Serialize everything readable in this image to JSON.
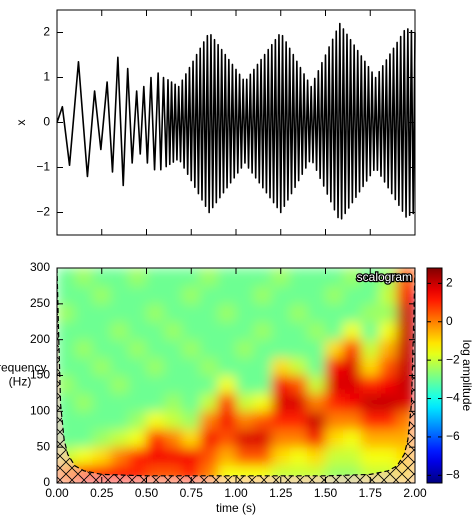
{
  "chart_data": [
    {
      "type": "line",
      "ylabel": "x",
      "color": "#000000",
      "x": [
        0,
        0.03,
        0.07,
        0.12,
        0.17,
        0.21,
        0.245,
        0.28,
        0.31,
        0.34,
        0.37,
        0.395,
        0.42,
        0.445,
        0.465,
        0.485,
        0.505,
        0.525,
        0.545,
        0.565,
        0.58,
        0.595,
        0.61,
        0.62,
        0.63,
        0.64,
        0.65,
        0.66,
        0.67,
        0.68,
        0.69,
        0.7,
        0.71,
        0.72,
        0.73,
        0.74,
        0.75,
        0.76,
        0.77,
        0.78,
        0.79,
        0.8,
        0.81,
        0.82,
        0.83,
        0.84,
        0.85,
        0.86,
        0.87,
        0.88,
        0.89,
        0.9,
        0.91,
        0.92,
        0.93,
        0.94,
        0.95,
        0.96,
        0.97,
        0.98,
        0.99,
        1.0,
        1.01,
        1.02,
        1.03,
        1.04,
        1.05,
        1.06,
        1.07,
        1.08,
        1.09,
        1.1,
        1.11,
        1.12,
        1.13,
        1.14,
        1.15,
        1.16,
        1.17,
        1.18,
        1.19,
        1.2,
        1.21,
        1.22,
        1.23,
        1.24,
        1.25,
        1.26,
        1.27,
        1.28,
        1.29,
        1.3,
        1.31,
        1.32,
        1.33,
        1.34,
        1.35,
        1.36,
        1.37,
        1.38,
        1.39,
        1.4,
        1.41,
        1.42,
        1.43,
        1.44,
        1.45,
        1.46,
        1.47,
        1.48,
        1.49,
        1.5,
        1.51,
        1.52,
        1.53,
        1.54,
        1.55,
        1.56,
        1.57,
        1.58,
        1.59,
        1.6,
        1.61,
        1.62,
        1.63,
        1.64,
        1.65,
        1.66,
        1.67,
        1.68,
        1.69,
        1.7,
        1.71,
        1.72,
        1.73,
        1.74,
        1.75,
        1.76,
        1.77,
        1.78,
        1.79,
        1.8,
        1.81,
        1.82,
        1.83,
        1.84,
        1.85,
        1.86,
        1.87,
        1.88,
        1.89,
        1.9,
        1.91,
        1.92,
        1.93,
        1.94,
        1.95,
        1.96,
        1.97,
        1.98,
        1.99,
        2.0
      ],
      "values": [
        0,
        0.35,
        -0.95,
        1.35,
        -1.2,
        0.7,
        -0.6,
        0.9,
        -1.1,
        1.45,
        -1.4,
        1.2,
        -0.9,
        0.7,
        -0.7,
        0.8,
        -0.9,
        1.0,
        -1.05,
        1.1,
        -1.05,
        1.0,
        -0.98,
        0.95,
        -0.93,
        0.9,
        -0.88,
        0.85,
        -0.83,
        0.8,
        -0.87,
        0.94,
        -1.01,
        1.08,
        -1.15,
        1.22,
        -1.29,
        1.36,
        -1.44,
        1.51,
        -1.58,
        1.65,
        -1.72,
        1.79,
        -1.86,
        1.93,
        -2.0,
        1.95,
        -1.89,
        1.84,
        -1.78,
        1.73,
        -1.67,
        1.62,
        -1.56,
        1.51,
        -1.45,
        1.4,
        -1.34,
        1.29,
        -1.23,
        1.18,
        -1.12,
        1.07,
        -1.01,
        0.96,
        -0.9,
        0.96,
        -1.01,
        1.07,
        -1.12,
        1.18,
        -1.23,
        1.29,
        -1.34,
        1.4,
        -1.45,
        1.51,
        -1.56,
        1.62,
        -1.67,
        1.73,
        -1.78,
        1.84,
        -1.89,
        1.95,
        -2.0,
        1.93,
        -1.86,
        1.79,
        -1.72,
        1.65,
        -1.58,
        1.51,
        -1.44,
        1.36,
        -1.29,
        1.22,
        -1.15,
        1.08,
        -1.01,
        0.94,
        -0.87,
        0.8,
        -0.89,
        0.98,
        -1.06,
        1.15,
        -1.24,
        1.33,
        -1.41,
        1.5,
        -1.59,
        1.68,
        -1.76,
        1.85,
        -1.94,
        2.03,
        -2.11,
        2.2,
        -2.14,
        2.08,
        -2.02,
        1.96,
        -1.9,
        1.84,
        -1.78,
        1.72,
        -1.66,
        1.6,
        -1.54,
        1.48,
        -1.42,
        1.36,
        -1.3,
        1.24,
        -1.18,
        1.12,
        -1.06,
        1.0,
        -1.06,
        1.13,
        -1.19,
        1.26,
        -1.32,
        1.39,
        -1.45,
        1.52,
        -1.58,
        1.65,
        -1.71,
        1.78,
        -1.84,
        1.91,
        -1.97,
        2.04,
        -2.1,
        2.08,
        -2.06,
        2.04,
        -2.02,
        2.0
      ],
      "xlim": [
        0,
        2
      ],
      "ylim": [
        -2.5,
        2.5
      ],
      "xticks": [
        0,
        0.25,
        0.5,
        0.75,
        1,
        1.25,
        1.5,
        1.75,
        2
      ],
      "xtick_labels": false,
      "yticks": [
        {
          "value": -2,
          "label": "−2"
        },
        {
          "value": -1,
          "label": "−1"
        },
        0,
        1,
        2
      ]
    },
    {
      "type": "heatmap",
      "annotation": "scalogram",
      "xlabel": "time (s)",
      "ylabel": [
        "frequency",
        "(Hz)"
      ],
      "colormap": "jet",
      "colorbar_label": "log amplitude",
      "zlim": [
        -8.4,
        2.8
      ],
      "zticks": [
        {
          "value": -8,
          "label": "−8"
        },
        {
          "value": -6,
          "label": "−6"
        },
        {
          "value": -4,
          "label": "−4"
        },
        {
          "value": -2,
          "label": "−2"
        },
        0,
        2
      ],
      "x_bins": [
        0,
        0.1,
        0.2,
        0.3,
        0.4,
        0.5,
        0.6,
        0.7,
        0.8,
        0.9,
        1.0,
        1.1,
        1.2,
        1.3,
        1.4,
        1.5,
        1.6,
        1.7,
        1.8,
        1.9,
        2.0
      ],
      "y_bins": [
        0,
        25,
        50,
        75,
        100,
        125,
        150,
        175,
        200,
        225,
        250,
        275,
        300
      ],
      "z": [
        [
          0,
          1,
          1.2,
          1.2,
          1,
          0.5,
          0.5,
          1,
          0,
          -1.5,
          -1.5,
          -1.5,
          -2,
          -2,
          -2,
          -2.5,
          -2.5,
          -2,
          -2,
          -1.5
        ],
        [
          -2,
          -1.5,
          -1,
          0,
          1,
          1.5,
          1.5,
          1.5,
          0.5,
          -0.5,
          0.5,
          0.5,
          -1,
          -1.5,
          -1,
          -2,
          -2,
          -1.5,
          -1.5,
          -1
        ],
        [
          -3,
          -3,
          -2.5,
          -2,
          -1.5,
          1,
          0,
          -1,
          1.5,
          0.5,
          1.8,
          1.8,
          0,
          0,
          1.5,
          -1,
          -1.5,
          -0.5,
          -0.5,
          -0.5
        ],
        [
          -3,
          -3,
          -3,
          -3,
          -2.5,
          -1.5,
          -2,
          -2.5,
          0,
          1.5,
          0,
          0.5,
          1,
          1,
          2,
          0,
          0,
          1,
          1,
          0
        ],
        [
          -3,
          -2.5,
          -3,
          -3,
          -3,
          -3,
          -2.5,
          -3,
          -2,
          1,
          -2,
          -1.5,
          1.8,
          1.8,
          0,
          1,
          1.5,
          2,
          2,
          1.8
        ],
        [
          -2.5,
          -3,
          -3,
          -2.5,
          -3,
          -3,
          -3,
          -3,
          -3,
          -1.5,
          -3,
          -3,
          1.5,
          0.5,
          -2,
          1.8,
          1.8,
          1,
          1.5,
          2
        ],
        [
          -3,
          -3,
          -2.5,
          -3,
          -3,
          -2.5,
          -3,
          -3,
          -2.5,
          -3,
          -3,
          -3,
          -1,
          -2,
          -3,
          1.5,
          1.8,
          -1,
          0.5,
          2
        ],
        [
          -3,
          -2.5,
          -3,
          -3,
          -2.5,
          -3,
          -3,
          -2.5,
          -3,
          -3,
          -2.5,
          -3,
          -3,
          -3,
          -3,
          -1,
          1,
          -2,
          -0.5,
          2
        ],
        [
          -3,
          -3,
          -3,
          -2.5,
          -3,
          -3,
          -2.5,
          -3,
          -3,
          -3,
          -3,
          -2.5,
          -3,
          -3,
          -2.5,
          -3,
          -1.5,
          -3,
          -1.5,
          2
        ],
        [
          -2.5,
          -3,
          -3,
          -3,
          -3,
          -2.5,
          -3,
          -3,
          -3,
          -2.5,
          -3,
          -3,
          -3,
          -2.5,
          -3,
          -3,
          -3,
          -2.5,
          -2.5,
          2
        ],
        [
          -3,
          -3,
          -2.5,
          -3,
          -3,
          -3,
          -3,
          -2.5,
          -3,
          -3,
          -3,
          -2.5,
          -3,
          -3,
          -3,
          -2.5,
          -3,
          -3,
          -2,
          1.5
        ],
        [
          -3,
          -2.5,
          -3,
          -3,
          -2.5,
          -3,
          -3,
          -3,
          -2.5,
          -3,
          -3,
          -3,
          -2.5,
          -3,
          -3,
          -3,
          -2.5,
          -3,
          -2.5,
          0.5
        ]
      ],
      "coi": {
        "x": [
          0,
          0.01,
          0.02,
          0.04,
          0.06,
          0.1,
          0.15,
          0.25,
          0.5,
          1,
          1.5,
          1.75,
          1.85,
          1.9,
          1.94,
          1.96,
          1.98,
          1.99,
          2
        ],
        "values": [
          300,
          200,
          110,
          60,
          40,
          24,
          17,
          12,
          10,
          10,
          10,
          12,
          17,
          24,
          40,
          60,
          110,
          200,
          300
        ]
      },
      "xlim": [
        0,
        2
      ],
      "ylim": [
        0,
        300
      ],
      "xticks": [
        {
          "value": 0,
          "label": "0.00"
        },
        {
          "value": 0.25,
          "label": "0.25"
        },
        {
          "value": 0.5,
          "label": "0.50"
        },
        {
          "value": 0.75,
          "label": "0.75"
        },
        {
          "value": 1,
          "label": "1.00"
        },
        {
          "value": 1.25,
          "label": "1.25"
        },
        {
          "value": 1.5,
          "label": "1.50"
        },
        {
          "value": 1.75,
          "label": "1.75"
        },
        {
          "value": 2,
          "label": "2.00"
        }
      ],
      "yticks": [
        0,
        50,
        100,
        150,
        200,
        250,
        300
      ]
    }
  ]
}
